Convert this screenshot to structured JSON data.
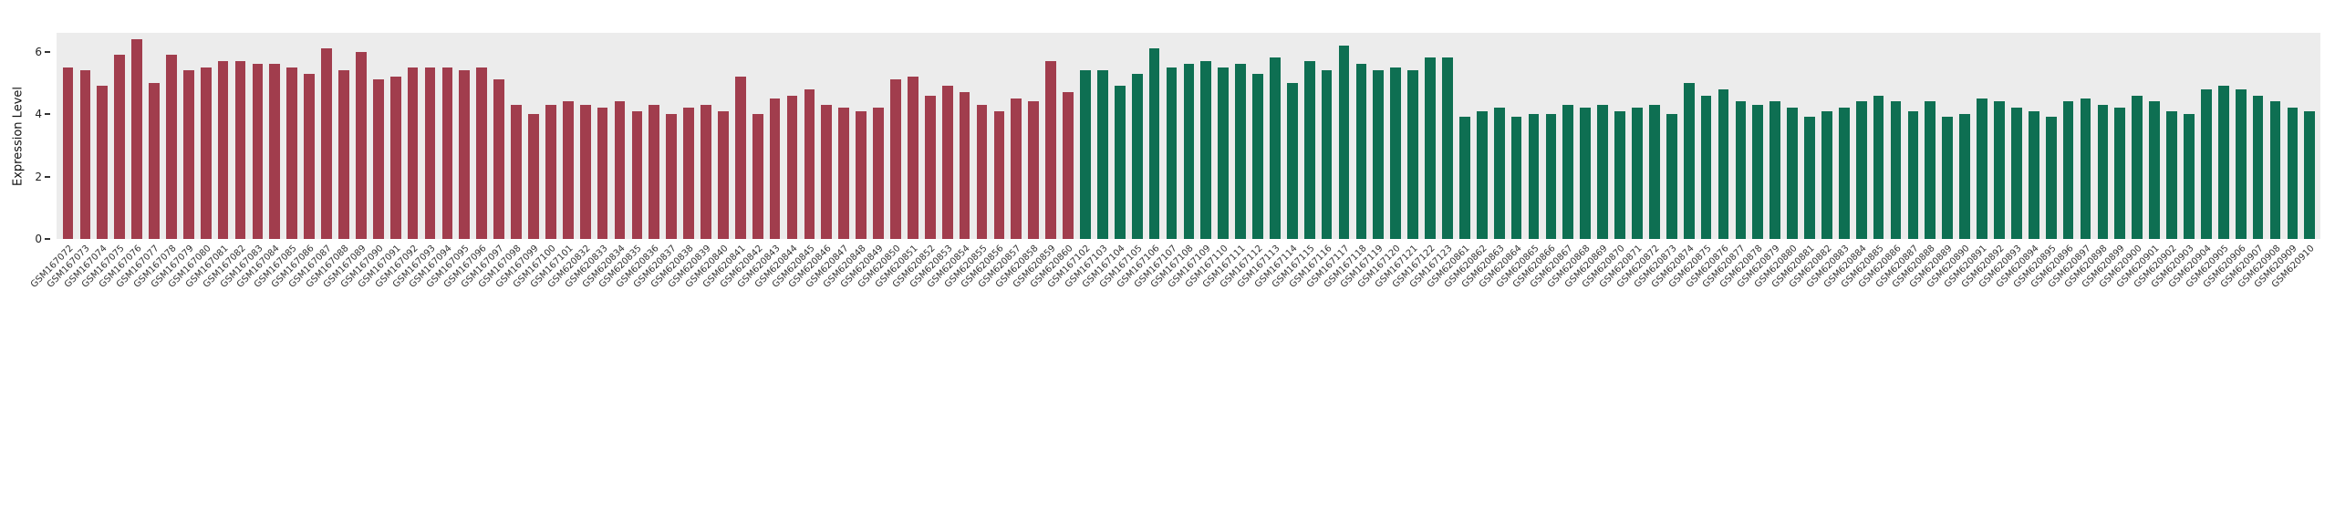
{
  "figure": {
    "ylabel": "Expression Level"
  },
  "chart_data": {
    "type": "bar",
    "title": "",
    "xlabel": "",
    "ylabel": "Expression Level",
    "ylim": [
      0,
      6.6
    ],
    "yticks": [
      "0",
      "2",
      "4",
      "6"
    ],
    "grid": false,
    "legend": null,
    "panel_background": "#ECECEC",
    "groups": [
      {
        "name": "group-red",
        "color": "#A13D4D",
        "categories": [
          "GSM167072",
          "GSM167073",
          "GSM167074",
          "GSM167075",
          "GSM167076",
          "GSM167077",
          "GSM167078",
          "GSM167079",
          "GSM167080",
          "GSM167081",
          "GSM167082",
          "GSM167083",
          "GSM167084",
          "GSM167085",
          "GSM167086",
          "GSM167087",
          "GSM167088",
          "GSM167089",
          "GSM167090",
          "GSM167091",
          "GSM167092",
          "GSM167093",
          "GSM167094",
          "GSM167095",
          "GSM167096",
          "GSM167097",
          "GSM167098",
          "GSM167099",
          "GSM167100",
          "GSM167101",
          "GSM620832",
          "GSM620833",
          "GSM620834",
          "GSM620835",
          "GSM620836",
          "GSM620837",
          "GSM620838",
          "GSM620839",
          "GSM620840",
          "GSM620841",
          "GSM620842",
          "GSM620843",
          "GSM620844",
          "GSM620845",
          "GSM620846",
          "GSM620847",
          "GSM620848",
          "GSM620849",
          "GSM620850",
          "GSM620851",
          "GSM620852",
          "GSM620853",
          "GSM620854",
          "GSM620855",
          "GSM620856",
          "GSM620857",
          "GSM620858",
          "GSM620859",
          "GSM620860"
        ],
        "values": [
          5.5,
          5.4,
          4.9,
          5.9,
          6.4,
          5.0,
          5.9,
          5.4,
          5.5,
          5.7,
          5.7,
          5.6,
          5.6,
          5.5,
          5.3,
          6.1,
          5.4,
          6.0,
          5.1,
          5.2,
          5.5,
          5.5,
          5.5,
          5.4,
          5.5,
          5.1,
          4.3,
          4.0,
          4.3,
          4.4,
          4.3,
          4.2,
          4.4,
          4.1,
          4.3,
          4.0,
          4.2,
          4.3,
          4.1,
          5.2,
          4.0,
          4.5,
          4.6,
          4.8,
          4.3,
          4.2,
          4.1,
          4.2,
          5.1,
          5.2,
          4.6,
          4.9,
          4.7,
          4.3,
          4.1,
          4.5,
          4.4,
          5.7,
          4.7
        ]
      },
      {
        "name": "group-green",
        "color": "#0E6F52",
        "categories": [
          "GSM167102",
          "GSM167103",
          "GSM167104",
          "GSM167105",
          "GSM167106",
          "GSM167107",
          "GSM167108",
          "GSM167109",
          "GSM167110",
          "GSM167111",
          "GSM167112",
          "GSM167113",
          "GSM167114",
          "GSM167115",
          "GSM167116",
          "GSM167117",
          "GSM167118",
          "GSM167119",
          "GSM167120",
          "GSM167121",
          "GSM167122",
          "GSM167123",
          "GSM620861",
          "GSM620862",
          "GSM620863",
          "GSM620864",
          "GSM620865",
          "GSM620866",
          "GSM620867",
          "GSM620868",
          "GSM620869",
          "GSM620870",
          "GSM620871",
          "GSM620872",
          "GSM620873",
          "GSM620874",
          "GSM620875",
          "GSM620876",
          "GSM620877",
          "GSM620878",
          "GSM620879",
          "GSM620880",
          "GSM620881",
          "GSM620882",
          "GSM620883",
          "GSM620884",
          "GSM620885",
          "GSM620886",
          "GSM620887",
          "GSM620888",
          "GSM620889",
          "GSM620890",
          "GSM620891",
          "GSM620892",
          "GSM620893",
          "GSM620894",
          "GSM620895",
          "GSM620896",
          "GSM620897",
          "GSM620898",
          "GSM620899",
          "GSM620900",
          "GSM620901",
          "GSM620902",
          "GSM620903",
          "GSM620904",
          "GSM620905",
          "GSM620906",
          "GSM620907",
          "GSM620908",
          "GSM620909",
          "GSM620910"
        ],
        "values": [
          5.4,
          5.4,
          4.9,
          5.3,
          6.1,
          5.5,
          5.6,
          5.7,
          5.5,
          5.6,
          5.3,
          5.8,
          5.0,
          5.7,
          5.4,
          6.2,
          5.6,
          5.4,
          5.5,
          5.4,
          5.8,
          5.8,
          3.9,
          4.1,
          4.2,
          3.9,
          4.0,
          4.0,
          4.3,
          4.2,
          4.3,
          4.1,
          4.2,
          4.3,
          4.0,
          5.0,
          4.6,
          4.8,
          4.4,
          4.3,
          4.4,
          4.2,
          3.9,
          4.1,
          4.2,
          4.4,
          4.6,
          4.4,
          4.1,
          4.4,
          3.9,
          4.0,
          4.5,
          4.4,
          4.2,
          4.1,
          3.9,
          4.4,
          4.5,
          4.3,
          4.2,
          4.6,
          4.4,
          4.1,
          4.0,
          4.8,
          4.9,
          4.8,
          4.6,
          4.4,
          4.2,
          4.1
        ]
      }
    ]
  }
}
